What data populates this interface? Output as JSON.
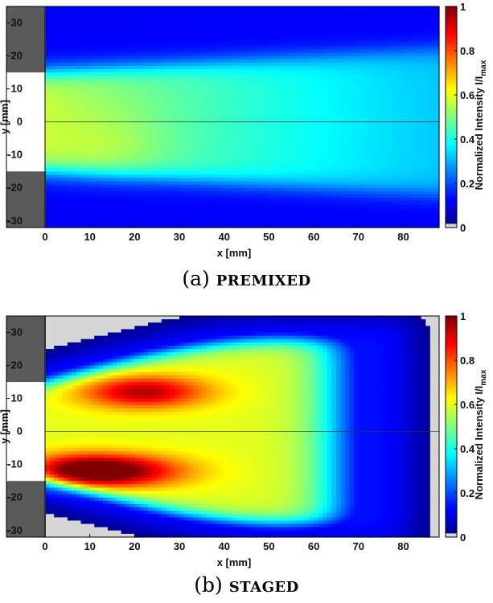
{
  "figure": {
    "panels": [
      {
        "caption_prefix": "(a)",
        "caption_name": "premixed"
      },
      {
        "caption_prefix": "(b)",
        "caption_name": "staged"
      }
    ]
  },
  "chart_data": [
    {
      "type": "heatmap",
      "title": "",
      "xlabel": "x [mm]",
      "ylabel": "y [mm]",
      "colorbar_label": "Normalized Intensity I/I",
      "colorbar_label_sub": "max",
      "xlim": [
        0,
        88
      ],
      "ylim": [
        -32,
        35
      ],
      "clim": [
        0,
        1
      ],
      "xticks": [
        0,
        10,
        20,
        30,
        40,
        50,
        60,
        70,
        80
      ],
      "yticks": [
        -30,
        -20,
        -10,
        0,
        10,
        20,
        30
      ],
      "cticks": [
        0,
        0.2,
        0.4,
        0.6,
        0.8,
        1
      ],
      "cticklabels": [
        "0",
        "0.2",
        "0.4",
        "0.6",
        "0.8",
        "1"
      ],
      "colormap": "jet with light-gray at 0",
      "centerline_y": 0,
      "walls": [
        {
          "x": [
            -8,
            0
          ],
          "y": [
            15,
            35
          ],
          "color": "#5a5a5a"
        },
        {
          "x": [
            -8,
            0
          ],
          "y": [
            -32,
            -15
          ],
          "color": "#5a5a5a"
        }
      ],
      "background_value": 0.12,
      "features": [
        {
          "kind": "jet",
          "y_half_width_at_x0": 15,
          "y_half_width_at_x88": 22,
          "peak": 0.45,
          "decay_length_mm": 110
        }
      ],
      "hot_spots": [
        {
          "x": 15,
          "y": -7,
          "intensity": 0.5
        }
      ]
    },
    {
      "type": "heatmap",
      "title": "",
      "xlabel": "x [mm]",
      "ylabel": "y [mm]",
      "colorbar_label": "Normalized Intensity I/I",
      "colorbar_label_sub": "max",
      "xlim": [
        0,
        88
      ],
      "ylim": [
        -32,
        35
      ],
      "clim": [
        0,
        1
      ],
      "xticks": [
        0,
        10,
        20,
        30,
        40,
        50,
        60,
        70,
        80
      ],
      "yticks": [
        -30,
        -20,
        -10,
        0,
        10,
        20,
        30
      ],
      "cticks": [
        0,
        0.2,
        0.4,
        0.6,
        0.8,
        1
      ],
      "cticklabels": [
        "0",
        "0.2",
        "0.4",
        "0.6",
        "0.8",
        "1"
      ],
      "colormap": "jet with light-gray at 0",
      "centerline_y": 0,
      "walls": [
        {
          "x": [
            -8,
            0
          ],
          "y": [
            15,
            35
          ],
          "color": "#5a5a5a"
        },
        {
          "x": [
            -8,
            0
          ],
          "y": [
            -32,
            -15
          ],
          "color": "#5a5a5a"
        }
      ],
      "background_value": 0.0,
      "features": [
        {
          "kind": "flame",
          "y_half_width_at_x0": 15,
          "y_half_width_max": 28,
          "length_mm": 65,
          "peak": 0.6
        }
      ],
      "hot_spots": [
        {
          "x": 22,
          "y": 12,
          "intensity": 0.95
        },
        {
          "x": 8,
          "y": -12,
          "intensity": 1.0
        },
        {
          "x": 20,
          "y": -12,
          "intensity": 0.85
        }
      ]
    }
  ]
}
